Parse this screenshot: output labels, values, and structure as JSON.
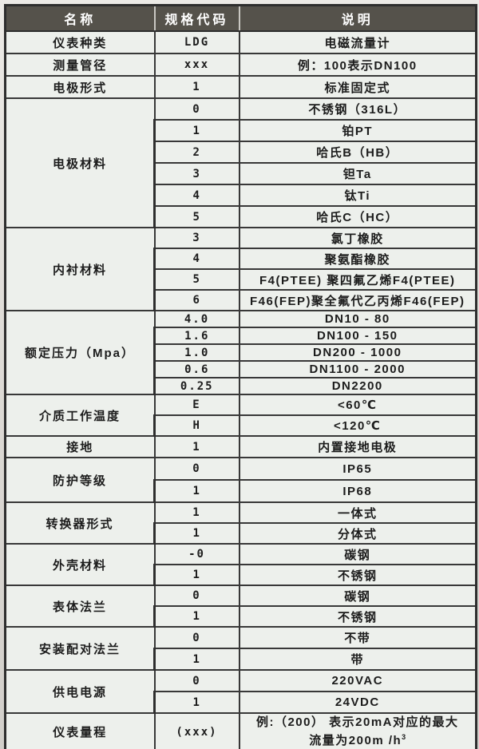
{
  "colors": {
    "header_bg": "#55524b",
    "header_text": "#ffffff",
    "cell_bg": "#edf0ec",
    "border": "#2e2e2e",
    "page_bg": "#dcd9d4"
  },
  "table": {
    "headers": [
      "名称",
      "规格代码",
      "说明"
    ],
    "groups": [
      {
        "name": "仪表种类",
        "rows": [
          {
            "code": "LDG",
            "desc": "电磁流量计"
          }
        ]
      },
      {
        "name": "测量管径",
        "rows": [
          {
            "code": "xxx",
            "desc": "例：100表示DN100"
          }
        ]
      },
      {
        "name": "电极形式",
        "rows": [
          {
            "code": "1",
            "desc": "标准固定式"
          }
        ]
      },
      {
        "name": "电极材料",
        "rows": [
          {
            "code": "0",
            "desc": "不锈钢（316L）"
          },
          {
            "code": "1",
            "desc": "铂PT"
          },
          {
            "code": "2",
            "desc": "哈氏B（HB）"
          },
          {
            "code": "3",
            "desc": "钽Ta"
          },
          {
            "code": "4",
            "desc": "钛Ti"
          },
          {
            "code": "5",
            "desc": "哈氏C（HC）"
          }
        ]
      },
      {
        "name": "内衬材料",
        "rows": [
          {
            "code": "3",
            "desc": "氯丁橡胶"
          },
          {
            "code": "4",
            "desc": "聚氨酯橡胶"
          },
          {
            "code": "5",
            "desc": "F4(PTEE) 聚四氟乙烯F4(PTEE)"
          },
          {
            "code": "6",
            "desc": "F46(FEP)聚全氟代乙丙烯F46(FEP)"
          }
        ]
      },
      {
        "name": "额定压力（Mpa）",
        "rows": [
          {
            "code": "4.0",
            "desc": "DN10 - 80"
          },
          {
            "code": "1.6",
            "desc": "DN100 - 150"
          },
          {
            "code": "1.0",
            "desc": "DN200 - 1000"
          },
          {
            "code": "0.6",
            "desc": "DN1100 - 2000"
          },
          {
            "code": "0.25",
            "desc": "DN2200"
          }
        ]
      },
      {
        "name": "介质工作温度",
        "rows": [
          {
            "code": "E",
            "desc": "<60℃"
          },
          {
            "code": "H",
            "desc": "<120℃"
          }
        ]
      },
      {
        "name": "接地",
        "rows": [
          {
            "code": "1",
            "desc": "内置接地电极"
          }
        ]
      },
      {
        "name": "防护等级",
        "rows": [
          {
            "code": "0",
            "desc": "IP65"
          },
          {
            "code": "1",
            "desc": "IP68"
          }
        ]
      },
      {
        "name": "转换器形式",
        "rows": [
          {
            "code": "1",
            "desc": "一体式"
          },
          {
            "code": "1",
            "desc": "分体式"
          }
        ]
      },
      {
        "name": "外壳材料",
        "rows": [
          {
            "code": "-0",
            "desc": "碳钢"
          },
          {
            "code": "1",
            "desc": "不锈钢"
          }
        ]
      },
      {
        "name": "表体法兰",
        "rows": [
          {
            "code": "0",
            "desc": "碳钢"
          },
          {
            "code": "1",
            "desc": "不锈钢"
          }
        ]
      },
      {
        "name": "安装配对法兰",
        "rows": [
          {
            "code": "0",
            "desc": "不带"
          },
          {
            "code": "1",
            "desc": "带"
          }
        ]
      },
      {
        "name": "供电电源",
        "rows": [
          {
            "code": "0",
            "desc": "220VAC"
          },
          {
            "code": "1",
            "desc": "24VDC"
          }
        ]
      },
      {
        "name": "仪表量程",
        "rows": [
          {
            "code": "(xxx)",
            "desc_line1": "例:（200） 表示20mA对应的最大",
            "desc_line2": "流量为200m /h",
            "desc_sup": "3"
          }
        ]
      }
    ]
  }
}
